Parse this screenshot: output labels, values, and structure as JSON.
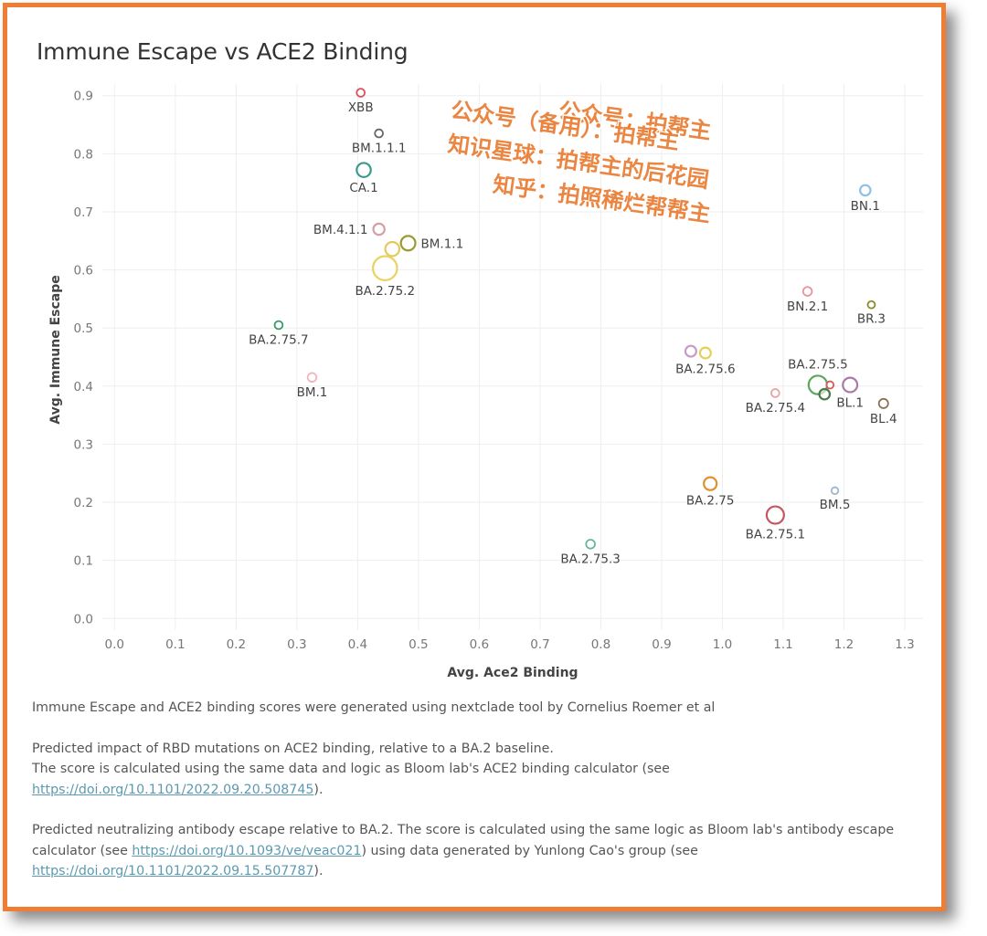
{
  "chart_data": {
    "type": "scatter",
    "title": "Immune Escape vs ACE2 Binding",
    "xlabel": "Avg. Ace2 Binding",
    "ylabel": "Avg. Immune Escape",
    "xlim": [
      -0.02,
      1.33
    ],
    "ylim": [
      -0.02,
      0.92
    ],
    "xticks": [
      "0.0",
      "0.1",
      "0.2",
      "0.3",
      "0.4",
      "0.5",
      "0.6",
      "0.7",
      "0.8",
      "0.9",
      "1.0",
      "1.1",
      "1.2",
      "1.3"
    ],
    "yticks": [
      "0.0",
      "0.1",
      "0.2",
      "0.3",
      "0.4",
      "0.5",
      "0.6",
      "0.7",
      "0.8",
      "0.9"
    ],
    "grid": true,
    "points": [
      {
        "x": 0.405,
        "y": 0.905,
        "label": "XBB",
        "color": "#d9515f",
        "size": 1,
        "labelPos": "below"
      },
      {
        "x": 0.435,
        "y": 0.835,
        "label": "BM.1.1.1",
        "color": "#666666",
        "size": 1,
        "labelPos": "below"
      },
      {
        "x": 0.41,
        "y": 0.772,
        "label": "CA.1",
        "color": "#3a9a8e",
        "size": 2.5,
        "labelPos": "below"
      },
      {
        "x": 1.235,
        "y": 0.737,
        "label": "BN.1",
        "color": "#8ec1e3",
        "size": 1.6,
        "labelPos": "below"
      },
      {
        "x": 0.435,
        "y": 0.67,
        "label": "BM.4.1.1",
        "color": "#d2a0a6",
        "size": 1.8,
        "labelPos": "left"
      },
      {
        "x": 0.483,
        "y": 0.646,
        "label": "BM.1.1",
        "color": "#9a9a32",
        "size": 2.6,
        "labelPos": "right"
      },
      {
        "x": 0.457,
        "y": 0.636,
        "label": "",
        "color": "#e5c95c",
        "size": 2.5,
        "labelPos": "none"
      },
      {
        "x": 0.445,
        "y": 0.603,
        "label": "BA.2.75.2",
        "color": "#e9d25e",
        "size": 5,
        "labelPos": "below"
      },
      {
        "x": 1.14,
        "y": 0.563,
        "label": "BN.2.1",
        "color": "#e8959a",
        "size": 1.2,
        "labelPos": "below"
      },
      {
        "x": 1.245,
        "y": 0.54,
        "label": "BR.3",
        "color": "#8b8b2a",
        "size": 0.8,
        "labelPos": "below"
      },
      {
        "x": 0.27,
        "y": 0.505,
        "label": "BA.2.75.7",
        "color": "#3a9a6e",
        "size": 1,
        "labelPos": "below"
      },
      {
        "x": 0.948,
        "y": 0.46,
        "label": "",
        "color": "#c99bc4",
        "size": 1.7,
        "labelPos": "none"
      },
      {
        "x": 0.972,
        "y": 0.457,
        "label": "BA.2.75.6",
        "color": "#e5cf58",
        "size": 1.7,
        "labelPos": "below"
      },
      {
        "x": 0.325,
        "y": 0.415,
        "label": "BM.1",
        "color": "#eeb6bd",
        "size": 1.2,
        "labelPos": "below"
      },
      {
        "x": 1.157,
        "y": 0.402,
        "label": "BA.2.75.5",
        "color": "#5aa65a",
        "size": 3.6,
        "labelPos": "above"
      },
      {
        "x": 1.177,
        "y": 0.402,
        "label": "",
        "color": "#d65a5a",
        "size": 0.8,
        "labelPos": "none"
      },
      {
        "x": 1.21,
        "y": 0.402,
        "label": "BL.1",
        "color": "#a97aa8",
        "size": 2.6,
        "labelPos": "below"
      },
      {
        "x": 1.168,
        "y": 0.386,
        "label": "",
        "color": "#4a7a4a",
        "size": 1.6,
        "labelPos": "none"
      },
      {
        "x": 1.087,
        "y": 0.388,
        "label": "BA.2.75.4",
        "color": "#e8a3a8",
        "size": 1,
        "labelPos": "below"
      },
      {
        "x": 1.265,
        "y": 0.37,
        "label": "BL.4",
        "color": "#8a7355",
        "size": 1.3,
        "labelPos": "below"
      },
      {
        "x": 0.98,
        "y": 0.232,
        "label": "BA.2.75",
        "color": "#e0912e",
        "size": 2.2,
        "labelPos": "below"
      },
      {
        "x": 1.185,
        "y": 0.22,
        "label": "BM.5",
        "color": "#9fb6c9",
        "size": 0.7,
        "labelPos": "below"
      },
      {
        "x": 1.087,
        "y": 0.178,
        "label": "BA.2.75.1",
        "color": "#c9545f",
        "size": 3.3,
        "labelPos": "below"
      },
      {
        "x": 0.783,
        "y": 0.128,
        "label": "BA.2.75.3",
        "color": "#6ab59a",
        "size": 1.2,
        "labelPos": "below"
      }
    ]
  },
  "watermark": {
    "line1": "公众号：拍帮主",
    "line2": "公众号（备用）：拍帮主",
    "line3": "知识星球：拍帮主的后花园",
    "line4": "知乎：拍照稀烂帮帮主"
  },
  "notes": {
    "source": "Immune Escape and ACE2 binding scores were generated using nextclade tool by Cornelius Roemer et al",
    "ace2_line1": "Predicted impact of RBD mutations on ACE2 binding, relative to a BA.2 baseline.",
    "ace2_line2": "The score is calculated using the same data and logic as Bloom lab's ACE2 binding calculator (see",
    "ace2_link": "https://doi.org/10.1101/2022.09.20.508745",
    "ace2_tail": ").",
    "escape_text1": "Predicted neutralizing antibody escape relative to BA.2. The score is calculated using the same logic as Bloom lab's antibody escape calculator (see",
    "escape_link1": "https://doi.org/10.1093/ve/veac021",
    "escape_text2": ") using data generated by Yunlong Cao's group (see",
    "escape_link2": "https://doi.org/10.1101/2022.09.15.507787",
    "escape_tail": ")."
  }
}
